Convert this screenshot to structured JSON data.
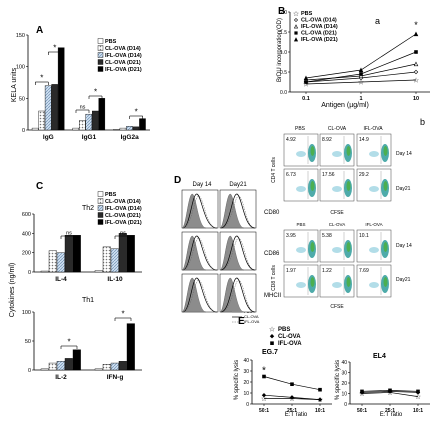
{
  "figure": {
    "panels": {
      "A": "A",
      "B": "B",
      "C": "C",
      "D": "D",
      "E": "E",
      "B_sub_a": "a",
      "B_sub_b": "b"
    },
    "legend_five": [
      "PBS",
      "CL-OVA (D14)",
      "IFL-OVA (D14)",
      "CL-OVA (D21)",
      "IFL-OVA (D21)"
    ],
    "legend_three": [
      "PBS",
      "CL-OVA",
      "IFL-OVA"
    ],
    "significance": {
      "ns": "ns",
      "star": "*"
    },
    "flow": {
      "col_labels": [
        "PBS",
        "CL-OVA",
        "IFL-OVA"
      ],
      "day14": "Day 14",
      "day21": "Day21",
      "cd4_label": "CD4 T cells",
      "cd8_label": "CD8 T cells",
      "xaxis": "CFSE",
      "cd4_values": [
        [
          "4.92",
          "8.92",
          "14.9"
        ],
        [
          "6.73",
          "17.56",
          "29.2"
        ]
      ],
      "cd8_values": [
        [
          "3.95",
          "5.38",
          "10.1"
        ],
        [
          "1.97",
          "1.22",
          "7.69"
        ]
      ]
    },
    "histograms": {
      "col_titles": [
        "Day 14",
        "Day21"
      ],
      "markers": [
        "CD80",
        "CD86",
        "MHCII"
      ],
      "legend": [
        "PBS",
        "CL-OVA",
        "IFL-OVA"
      ]
    }
  },
  "chart_data": [
    {
      "panel": "A",
      "type": "bar",
      "ylabel": "KELA units",
      "ylim": [
        0,
        150
      ],
      "yticks": [
        0,
        50,
        100,
        150
      ],
      "categories": [
        "IgG",
        "IgG1",
        "IgG2a"
      ],
      "series": [
        {
          "name": "PBS",
          "values": [
            3,
            3,
            1
          ]
        },
        {
          "name": "CL-OVA (D14)",
          "values": [
            30,
            15,
            3
          ]
        },
        {
          "name": "IFL-OVA (D14)",
          "values": [
            70,
            25,
            6
          ]
        },
        {
          "name": "CL-OVA (D21)",
          "values": [
            72,
            30,
            5
          ]
        },
        {
          "name": "IFL-OVA (D21)",
          "values": [
            130,
            50,
            18
          ]
        }
      ],
      "annotations": [
        "*",
        "*",
        "ns",
        "*",
        "*"
      ]
    },
    {
      "panel": "B-a",
      "type": "line",
      "xlabel": "Antigen (µg/ml)",
      "ylabel": "BrDU incorporation(OD)",
      "x": [
        0.1,
        1,
        10
      ],
      "xticks": [
        "0.1",
        "1",
        "10"
      ],
      "xscale": "log",
      "ylim": [
        0,
        2.0
      ],
      "yticks": [
        "0.0",
        "0.5",
        "1.0",
        "1.5",
        "2.0"
      ],
      "series": [
        {
          "name": "PBS",
          "values": [
            0.2,
            0.25,
            0.3
          ]
        },
        {
          "name": "CL-OVA (D14)",
          "values": [
            0.25,
            0.35,
            0.5
          ]
        },
        {
          "name": "IFL-OVA (D14)",
          "values": [
            0.3,
            0.4,
            0.7
          ]
        },
        {
          "name": "CL-OVA (D21)",
          "values": [
            0.25,
            0.45,
            1.0
          ]
        },
        {
          "name": "IFL-OVA (D21)",
          "values": [
            0.35,
            0.55,
            1.45
          ]
        }
      ],
      "annotations": [
        "*"
      ]
    },
    {
      "panel": "C-Th2",
      "type": "bar",
      "title": "Th2",
      "ylim": [
        0,
        600
      ],
      "yticks": [
        0,
        200,
        400,
        600
      ],
      "categories": [
        "IL-4",
        "IL-10"
      ],
      "series": [
        {
          "name": "PBS",
          "values": [
            10,
            15
          ]
        },
        {
          "name": "CL-OVA (D14)",
          "values": [
            220,
            260
          ]
        },
        {
          "name": "IFL-OVA (D14)",
          "values": [
            200,
            240
          ]
        },
        {
          "name": "CL-OVA (D21)",
          "values": [
            380,
            400
          ]
        },
        {
          "name": "IFL-OVA (D21)",
          "values": [
            380,
            380
          ]
        }
      ],
      "annotations": [
        "ns",
        "ns"
      ]
    },
    {
      "panel": "C-Th1",
      "type": "bar",
      "title": "Th1",
      "ylabel": "Cytokines (ng/ml)",
      "ylim": [
        0,
        100
      ],
      "yticks": [
        0,
        50,
        100
      ],
      "categories": [
        "IL-2",
        "IFN-g"
      ],
      "series": [
        {
          "name": "PBS",
          "values": [
            2,
            2
          ]
        },
        {
          "name": "CL-OVA (D14)",
          "values": [
            12,
            10
          ]
        },
        {
          "name": "IFL-OVA (D14)",
          "values": [
            15,
            12
          ]
        },
        {
          "name": "CL-OVA (D21)",
          "values": [
            20,
            15
          ]
        },
        {
          "name": "IFL-OVA (D21)",
          "values": [
            35,
            80
          ]
        }
      ],
      "annotations": [
        "*",
        "*"
      ]
    },
    {
      "panel": "E-EG7",
      "type": "line",
      "title": "EG.7",
      "xlabel": "E:T ratio",
      "ylabel": "% specific lysis",
      "x": [
        "50:1",
        "25:1",
        "10:1"
      ],
      "ylim": [
        0,
        40
      ],
      "yticks": [
        0,
        10,
        20,
        30,
        40
      ],
      "series": [
        {
          "name": "PBS",
          "values": [
            5,
            5,
            4
          ]
        },
        {
          "name": "CL-OVA",
          "values": [
            8,
            6,
            4
          ]
        },
        {
          "name": "IFL-OVA",
          "values": [
            25,
            18,
            13
          ]
        }
      ],
      "annotations": [
        "*"
      ]
    },
    {
      "panel": "E-EL4",
      "type": "line",
      "title": "EL4",
      "xlabel": "E:T ratio",
      "ylabel": "% specific lysis",
      "x": [
        "50:1",
        "25:1",
        "10:1"
      ],
      "ylim": [
        0,
        40
      ],
      "yticks": [
        0,
        10,
        20,
        30,
        40
      ],
      "series": [
        {
          "name": "PBS",
          "values": [
            10,
            11,
            7
          ]
        },
        {
          "name": "CL-OVA",
          "values": [
            11,
            12,
            11
          ]
        },
        {
          "name": "IFL-OVA",
          "values": [
            12,
            13,
            12
          ]
        }
      ]
    }
  ]
}
